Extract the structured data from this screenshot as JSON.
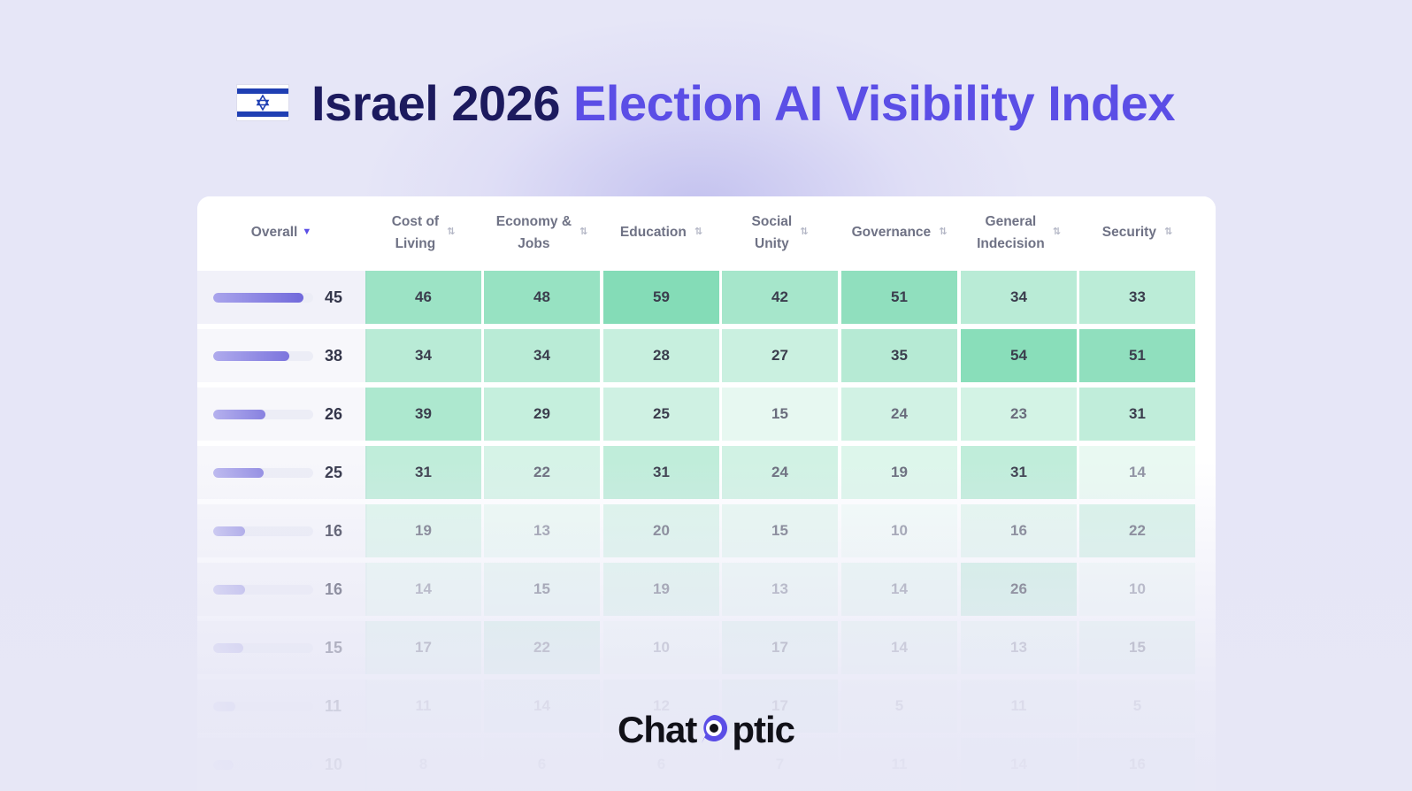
{
  "header": {
    "flag_icon": "israel-flag-icon",
    "title_part1": "Israel 2026",
    "title_part2": "Election AI Visibility Index"
  },
  "table": {
    "overall_label": "Overall",
    "columns": [
      {
        "line1": "Cost of",
        "line2": "Living"
      },
      {
        "line1": "Economy &",
        "line2": "Jobs"
      },
      {
        "line1": "Education",
        "line2": ""
      },
      {
        "line1": "Social",
        "line2": "Unity"
      },
      {
        "line1": "Governance",
        "line2": ""
      },
      {
        "line1": "General",
        "line2": "Indecision"
      },
      {
        "line1": "Security",
        "line2": ""
      }
    ],
    "rows": [
      {
        "overall": "45",
        "scores": [
          "46",
          "48",
          "59",
          "42",
          "51",
          "34",
          "33"
        ]
      },
      {
        "overall": "38",
        "scores": [
          "34",
          "34",
          "28",
          "27",
          "35",
          "54",
          "51"
        ]
      },
      {
        "overall": "26",
        "scores": [
          "39",
          "29",
          "25",
          "15",
          "24",
          "23",
          "31"
        ]
      },
      {
        "overall": "25",
        "scores": [
          "31",
          "22",
          "31",
          "24",
          "19",
          "31",
          "14"
        ]
      },
      {
        "overall": "16",
        "scores": [
          "19",
          "13",
          "20",
          "15",
          "10",
          "16",
          "22"
        ]
      },
      {
        "overall": "16",
        "scores": [
          "14",
          "15",
          "19",
          "13",
          "14",
          "26",
          "10"
        ]
      },
      {
        "overall": "15",
        "scores": [
          "17",
          "22",
          "10",
          "17",
          "14",
          "13",
          "15"
        ]
      },
      {
        "overall": "11",
        "scores": [
          "11",
          "14",
          "12",
          "17",
          "5",
          "11",
          "5"
        ]
      },
      {
        "overall": "10",
        "scores": [
          "8",
          "6",
          "6",
          "7",
          "11",
          "14",
          "16"
        ]
      }
    ],
    "colors": {
      "accent": "#5b4ee6",
      "title_dark": "#1c1a5e",
      "heat": "#7fdcb0"
    }
  },
  "brand": {
    "logo_left": "Chat",
    "logo_right": "ptic",
    "logo_icon": "chatoptic-logo-icon"
  }
}
